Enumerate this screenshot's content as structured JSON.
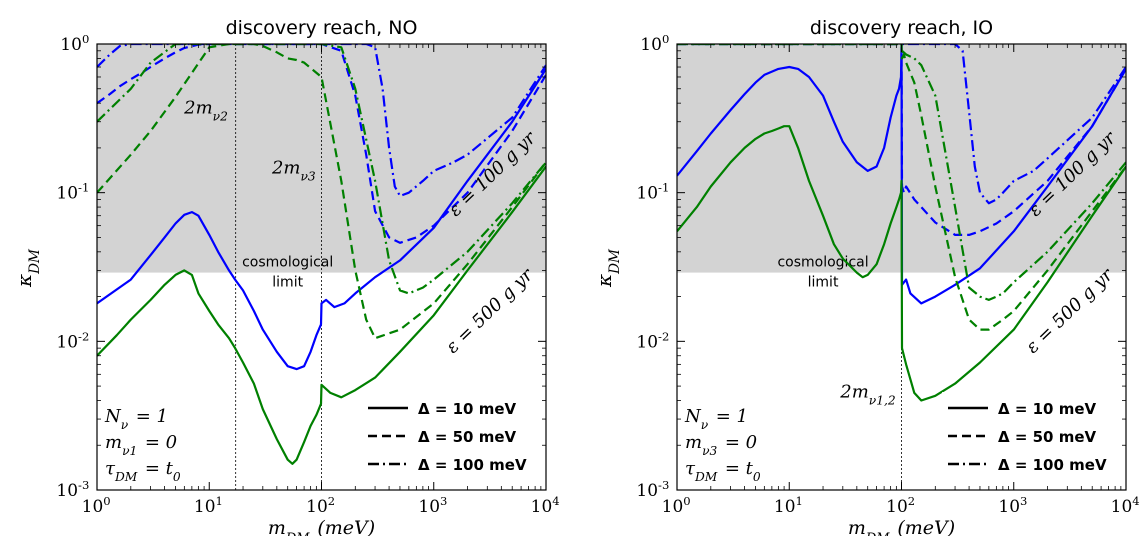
{
  "chart_data": [
    {
      "type": "line",
      "title": "discovery reach, NO",
      "xlabel": "m_DM (meV)",
      "ylabel": "κ_DM",
      "x_scale": "log",
      "y_scale": "log",
      "xlim": [
        1,
        10000
      ],
      "ylim": [
        0.001,
        1
      ],
      "x_tick_labels": [
        "10^0",
        "10^1",
        "10^2",
        "10^3",
        "10^4"
      ],
      "y_tick_labels": [
        "10^-3",
        "10^-2",
        "10^-1",
        "10^0"
      ],
      "excluded_region": {
        "label_line1": "cosmological",
        "label_line2": "limit",
        "kappa_min": 0.029,
        "color": "#d3d3d3"
      },
      "threshold_lines": [
        {
          "x": 17.2,
          "label": "2m_ν2"
        },
        {
          "x": 100,
          "label": "2m_ν3"
        }
      ],
      "exposure_labels": [
        {
          "text": "ε = 100 g yr",
          "color": "#0000ff"
        },
        {
          "text": "ε = 500 g yr",
          "color": "#008000"
        }
      ],
      "params_text": [
        "N_ν = 1",
        "m_ν1 = 0",
        "τ_DM = t_0"
      ],
      "legend": {
        "placement": "lower-right",
        "entries": [
          {
            "label": "Δ = 10 meV",
            "style": "solid"
          },
          {
            "label": "Δ = 50 meV",
            "style": "dashed"
          },
          {
            "label": "Δ = 100 meV",
            "style": "dashdot"
          }
        ]
      },
      "series": [
        {
          "color": "#0000ff",
          "style": "solid",
          "x": [
            1,
            2,
            3,
            4,
            5,
            6,
            7,
            8,
            10,
            12,
            15,
            17,
            20,
            25,
            30,
            40,
            50,
            60,
            70,
            80,
            90,
            99,
            100,
            110,
            130,
            160,
            200,
            300,
            500,
            1000,
            2000,
            5000,
            10000
          ],
          "y": [
            0.018,
            0.026,
            0.038,
            0.05,
            0.062,
            0.071,
            0.074,
            0.07,
            0.052,
            0.04,
            0.03,
            0.026,
            0.022,
            0.016,
            0.012,
            0.0085,
            0.0068,
            0.0065,
            0.0068,
            0.0085,
            0.011,
            0.013,
            0.018,
            0.019,
            0.017,
            0.018,
            0.021,
            0.027,
            0.035,
            0.058,
            0.12,
            0.3,
            0.68
          ]
        },
        {
          "color": "#0000ff",
          "style": "dashed",
          "x": [
            1,
            1.3,
            1.6,
            2,
            2.5,
            3,
            4,
            5,
            6,
            8,
            10,
            12,
            14,
            16,
            18,
            20,
            30,
            50,
            80,
            100,
            150,
            200,
            250,
            300,
            400,
            500,
            700,
            1000,
            2000,
            5000,
            10000
          ],
          "y": [
            0.4,
            0.46,
            0.52,
            0.58,
            0.64,
            0.7,
            0.8,
            0.88,
            0.94,
            0.99,
            1,
            1,
            1,
            1,
            1,
            1,
            1,
            1,
            1,
            1,
            0.9,
            0.45,
            0.18,
            0.075,
            0.05,
            0.046,
            0.05,
            0.06,
            0.1,
            0.26,
            0.62
          ]
        },
        {
          "color": "#0000ff",
          "style": "dashdot",
          "x": [
            1,
            1.3,
            1.6,
            2,
            2.5,
            3,
            4,
            5,
            6,
            7,
            8,
            10,
            20,
            50,
            100,
            200,
            250,
            300,
            350,
            400,
            450,
            500,
            600,
            800,
            1000,
            1500,
            2000,
            5000,
            10000
          ],
          "y": [
            0.7,
            0.85,
            0.97,
            1,
            1,
            1,
            1,
            1,
            1,
            1,
            1,
            1,
            1,
            1,
            1,
            1,
            1,
            0.95,
            0.5,
            0.2,
            0.11,
            0.095,
            0.1,
            0.12,
            0.14,
            0.16,
            0.18,
            0.32,
            0.72
          ]
        },
        {
          "color": "#008000",
          "style": "solid",
          "x": [
            1,
            1.5,
            2,
            3,
            4,
            5,
            6,
            7,
            8,
            10,
            12,
            15,
            17,
            20,
            25,
            30,
            40,
            50,
            55,
            60,
            70,
            80,
            90,
            99,
            100,
            120,
            150,
            200,
            300,
            500,
            1000,
            2000,
            5000,
            10000
          ],
          "y": [
            0.008,
            0.011,
            0.014,
            0.019,
            0.024,
            0.028,
            0.03,
            0.028,
            0.021,
            0.016,
            0.013,
            0.0105,
            0.009,
            0.0072,
            0.0052,
            0.0035,
            0.0022,
            0.0016,
            0.0015,
            0.0016,
            0.0021,
            0.0027,
            0.0032,
            0.0038,
            0.0051,
            0.0045,
            0.0042,
            0.0047,
            0.0057,
            0.0085,
            0.015,
            0.03,
            0.074,
            0.15
          ]
        },
        {
          "color": "#008000",
          "style": "dashed",
          "x": [
            1,
            2,
            3,
            5,
            10,
            15,
            20,
            25,
            30,
            40,
            50,
            60,
            70,
            100,
            150,
            200,
            250,
            300,
            500,
            1000,
            2000,
            5000,
            10000
          ],
          "y": [
            0.1,
            0.18,
            0.26,
            0.44,
            0.95,
            1,
            1,
            1,
            0.97,
            0.88,
            0.8,
            0.78,
            0.75,
            0.6,
            0.12,
            0.03,
            0.014,
            0.0105,
            0.012,
            0.018,
            0.033,
            0.08,
            0.16
          ]
        },
        {
          "color": "#008000",
          "style": "dashdot",
          "x": [
            1,
            2,
            3,
            5,
            8,
            10,
            20,
            50,
            100,
            150,
            200,
            300,
            400,
            500,
            600,
            800,
            1000,
            2000,
            5000,
            10000
          ],
          "y": [
            0.3,
            0.5,
            0.75,
            1,
            1,
            1,
            1,
            1,
            1,
            0.95,
            0.5,
            0.12,
            0.035,
            0.022,
            0.021,
            0.023,
            0.026,
            0.04,
            0.085,
            0.16
          ]
        }
      ]
    },
    {
      "type": "line",
      "title": "discovery reach, IO",
      "xlabel": "m_DM (meV)",
      "ylabel": "κ_DM",
      "x_scale": "log",
      "y_scale": "log",
      "xlim": [
        1,
        10000
      ],
      "ylim": [
        0.001,
        1
      ],
      "x_tick_labels": [
        "10^0",
        "10^1",
        "10^2",
        "10^3",
        "10^4"
      ],
      "y_tick_labels": [
        "10^-3",
        "10^-2",
        "10^-1",
        "10^0"
      ],
      "excluded_region": {
        "label_line1": "cosmological",
        "label_line2": "limit",
        "kappa_min": 0.029,
        "color": "#d3d3d3"
      },
      "threshold_lines": [
        {
          "x": 100,
          "label": "2m_ν1,2"
        }
      ],
      "exposure_labels": [
        {
          "text": "ε = 100 g yr",
          "color": "#0000ff"
        },
        {
          "text": "ε = 500 g yr",
          "color": "#008000"
        }
      ],
      "params_text": [
        "N_ν = 1",
        "m_ν3 = 0",
        "τ_DM = t_0"
      ],
      "legend": {
        "placement": "lower-right",
        "entries": [
          {
            "label": "Δ = 10 meV",
            "style": "solid"
          },
          {
            "label": "Δ = 50 meV",
            "style": "dashed"
          },
          {
            "label": "Δ = 100 meV",
            "style": "dashdot"
          }
        ]
      },
      "series": [
        {
          "color": "#0000ff",
          "style": "solid",
          "x": [
            1,
            1.5,
            2,
            3,
            4,
            5,
            6,
            8,
            10,
            12,
            15,
            20,
            25,
            30,
            40,
            50,
            60,
            70,
            80,
            90,
            95,
            99,
            100,
            101,
            110,
            120,
            150,
            200,
            300,
            500,
            1000,
            2000,
            5000,
            10000
          ],
          "y": [
            0.13,
            0.19,
            0.25,
            0.36,
            0.46,
            0.55,
            0.62,
            0.68,
            0.7,
            0.68,
            0.6,
            0.45,
            0.3,
            0.22,
            0.16,
            0.14,
            0.15,
            0.2,
            0.32,
            0.45,
            0.5,
            0.6,
            0.95,
            0.024,
            0.026,
            0.021,
            0.018,
            0.02,
            0.024,
            0.031,
            0.055,
            0.11,
            0.28,
            0.68
          ]
        },
        {
          "color": "#0000ff",
          "style": "dashed",
          "x": [
            1,
            20,
            50,
            90,
            99,
            100,
            101,
            105,
            110,
            130,
            150,
            200,
            300,
            400,
            500,
            700,
            1000,
            2000,
            5000,
            10000
          ],
          "y": [
            1,
            1,
            1,
            1,
            1,
            1,
            0.11,
            0.1,
            0.11,
            0.09,
            0.08,
            0.063,
            0.052,
            0.052,
            0.055,
            0.062,
            0.075,
            0.12,
            0.28,
            0.68
          ]
        },
        {
          "color": "#0000ff",
          "style": "dashdot",
          "x": [
            1,
            20,
            50,
            99,
            100,
            200,
            300,
            350,
            400,
            450,
            500,
            600,
            700,
            800,
            1000,
            1500,
            2000,
            5000,
            10000
          ],
          "y": [
            1,
            1,
            1,
            1,
            1,
            1,
            1,
            0.9,
            0.35,
            0.15,
            0.1,
            0.085,
            0.09,
            0.1,
            0.12,
            0.14,
            0.17,
            0.32,
            0.7
          ]
        },
        {
          "color": "#008000",
          "style": "solid",
          "x": [
            1,
            1.5,
            2,
            3,
            4,
            5,
            6,
            7,
            8,
            9,
            10,
            12,
            15,
            20,
            25,
            30,
            40,
            45,
            50,
            60,
            70,
            80,
            90,
            95,
            99,
            100,
            101,
            110,
            130,
            150,
            200,
            300,
            500,
            1000,
            2000,
            5000,
            10000
          ],
          "y": [
            0.055,
            0.08,
            0.11,
            0.16,
            0.2,
            0.23,
            0.25,
            0.26,
            0.27,
            0.28,
            0.28,
            0.2,
            0.12,
            0.07,
            0.045,
            0.036,
            0.029,
            0.027,
            0.028,
            0.033,
            0.045,
            0.062,
            0.08,
            0.09,
            0.1,
            0.12,
            0.009,
            0.007,
            0.0045,
            0.004,
            0.0043,
            0.0052,
            0.0072,
            0.012,
            0.025,
            0.07,
            0.15
          ]
        },
        {
          "color": "#008000",
          "style": "dashed",
          "x": [
            1,
            50,
            99,
            100,
            101,
            105,
            110,
            130,
            150,
            200,
            300,
            400,
            500,
            600,
            800,
            1000,
            2000,
            5000,
            10000
          ],
          "y": [
            1,
            1,
            1,
            1,
            0.8,
            0.85,
            0.75,
            0.55,
            0.33,
            0.11,
            0.027,
            0.014,
            0.012,
            0.012,
            0.014,
            0.016,
            0.03,
            0.075,
            0.15
          ]
        },
        {
          "color": "#008000",
          "style": "dashdot",
          "x": [
            1,
            50,
            99,
            100,
            101,
            110,
            130,
            150,
            200,
            300,
            400,
            500,
            600,
            700,
            800,
            1000,
            2000,
            5000,
            10000
          ],
          "y": [
            1,
            1,
            1,
            1,
            0.9,
            0.85,
            0.8,
            0.72,
            0.45,
            0.08,
            0.023,
            0.02,
            0.019,
            0.02,
            0.021,
            0.025,
            0.04,
            0.085,
            0.16
          ]
        }
      ]
    }
  ]
}
